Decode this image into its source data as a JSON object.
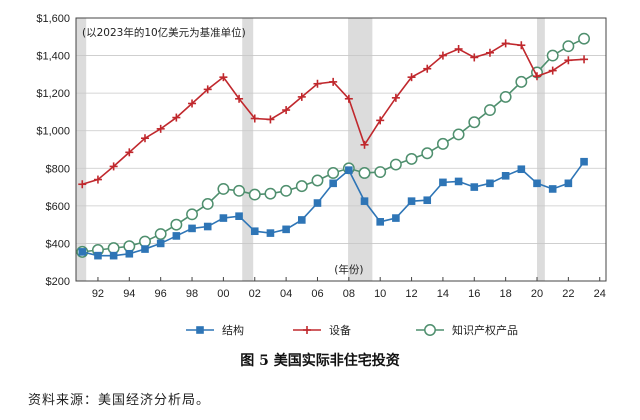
{
  "caption": "图 5    美国实际非住宅投资",
  "source": "资料来源：美国经济分析局。",
  "chart_data": {
    "type": "line",
    "title": "",
    "annotation": "(以2023年的10亿美元为基准单位)",
    "x_axis_label": "(年份)",
    "xlabel": "",
    "ylabel": "",
    "ylim": [
      200,
      1600
    ],
    "xlim": [
      1990.6,
      2024.4
    ],
    "y_ticks": [
      200,
      400,
      600,
      800,
      1000,
      1200,
      1400,
      1600
    ],
    "y_tick_labels": [
      "$200",
      "$400",
      "$600",
      "$800",
      "$1,000",
      "$1,200",
      "$1,400",
      "$1,600"
    ],
    "x_ticks": [
      1992,
      1994,
      1996,
      1998,
      2000,
      2002,
      2004,
      2006,
      2008,
      2010,
      2012,
      2014,
      2016,
      2018,
      2020,
      2022,
      2024
    ],
    "x_tick_labels": [
      "92",
      "94",
      "96",
      "98",
      "00",
      "02",
      "04",
      "06",
      "08",
      "10",
      "12",
      "14",
      "16",
      "18",
      "20",
      "22",
      "24"
    ],
    "recessions": [
      [
        1990.6,
        1991.25
      ],
      [
        2001.2,
        2001.9
      ],
      [
        2007.95,
        2009.5
      ],
      [
        2020.0,
        2020.5
      ]
    ],
    "grid": true,
    "legend_position": "bottom",
    "x": [
      1991,
      1992,
      1993,
      1994,
      1995,
      1996,
      1997,
      1998,
      1999,
      2000,
      2001,
      2002,
      2003,
      2004,
      2005,
      2006,
      2007,
      2008,
      2009,
      2010,
      2011,
      2012,
      2013,
      2014,
      2015,
      2016,
      2017,
      2018,
      2019,
      2020,
      2021,
      2022,
      2023
    ],
    "series": [
      {
        "name": "结构",
        "color": "#2e75b6",
        "marker": "square",
        "values": [
          355,
          335,
          335,
          345,
          370,
          400,
          440,
          480,
          490,
          535,
          545,
          465,
          455,
          475,
          525,
          615,
          720,
          790,
          625,
          515,
          535,
          625,
          630,
          725,
          730,
          700,
          720,
          760,
          795,
          720,
          690,
          720,
          835
        ]
      },
      {
        "name": "设备",
        "color": "#c0282d",
        "marker": "plus",
        "values": [
          715,
          740,
          810,
          885,
          960,
          1010,
          1070,
          1145,
          1220,
          1285,
          1170,
          1065,
          1060,
          1110,
          1180,
          1250,
          1260,
          1170,
          925,
          1055,
          1175,
          1285,
          1330,
          1400,
          1435,
          1390,
          1415,
          1465,
          1455,
          1290,
          1320,
          1375,
          1380
        ]
      },
      {
        "name": "知识产权产品",
        "color": "#4f8f6e",
        "marker": "circle",
        "values": [
          355,
          365,
          375,
          385,
          410,
          450,
          500,
          555,
          610,
          690,
          680,
          660,
          665,
          680,
          705,
          735,
          775,
          800,
          775,
          780,
          820,
          850,
          880,
          930,
          980,
          1045,
          1110,
          1180,
          1260,
          1310,
          1400,
          1450,
          1490
        ]
      }
    ]
  }
}
